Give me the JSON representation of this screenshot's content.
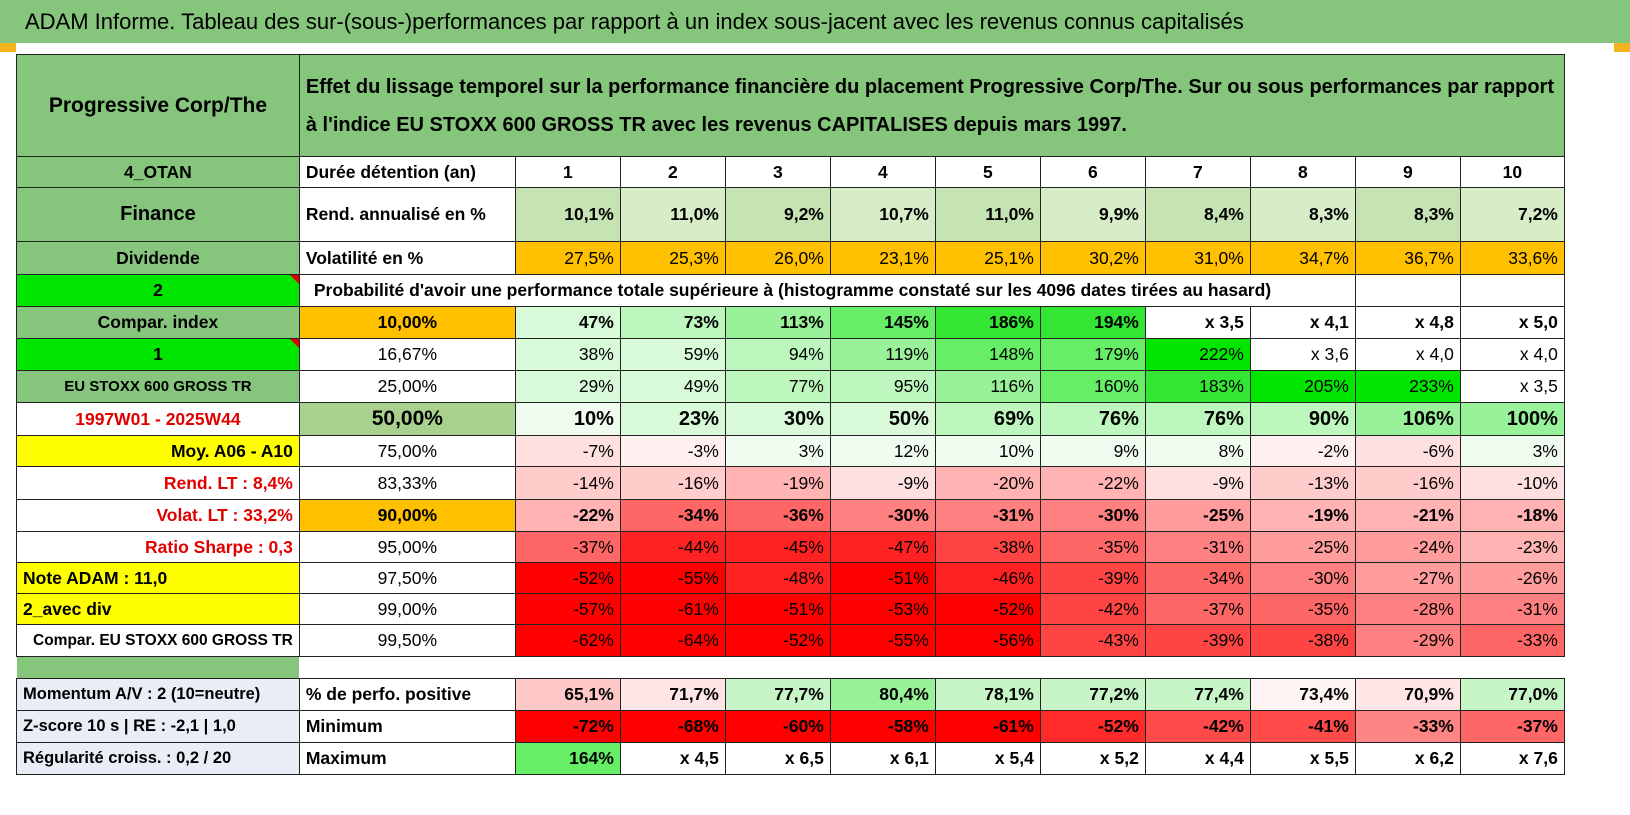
{
  "title": "ADAM Informe. Tableau des sur-(sous-)performances par rapport à un index sous-jacent avec les revenus connus capitalisés",
  "header": {
    "asset": "Progressive Corp/The",
    "description_line1": "Effet du lissage temporel sur la performance financière du placement Progressive Corp/The. Sur ou sous performances par rapport",
    "description_line2": "à l'indice EU STOXX 600 GROSS TR avec les revenus CAPITALISES depuis mars 1997."
  },
  "left_panel": {
    "code": "4_OTAN",
    "sector": "Finance",
    "type": "Dividende",
    "value_2": "2",
    "compar_index": "Compar. index",
    "value_1": "1",
    "index_name": "EU STOXX 600 GROSS TR",
    "period": "1997W01 - 2025W44",
    "moy": "Moy. A06 - A10",
    "rend_lt": "Rend. LT :    8,4%",
    "volat_lt": "Volat. LT :    33,2%",
    "sharpe": "Ratio Sharpe :     0,3",
    "note": "Note ADAM : 11,0",
    "avec_div": "2_avec div",
    "compar_full": "Compar. EU STOXX 600 GROSS TR"
  },
  "stats": {
    "duration_label": "Durée détention (an)",
    "years": [
      "1",
      "2",
      "3",
      "4",
      "5",
      "6",
      "7",
      "8",
      "9",
      "10"
    ],
    "rend_label": "Rend. annualisé en %",
    "rend": [
      "10,1%",
      "11,0%",
      "9,2%",
      "10,7%",
      "11,0%",
      "9,9%",
      "8,4%",
      "8,3%",
      "8,3%",
      "7,2%"
    ],
    "vol_label": "Volatilité en %",
    "vol": [
      "27,5%",
      "25,3%",
      "26,0%",
      "23,1%",
      "25,1%",
      "30,2%",
      "31,0%",
      "34,7%",
      "36,7%",
      "33,6%"
    ],
    "prob_label": "Probabilité d'avoir une performance totale supérieure à (histogramme constaté sur les 4096 dates tirées au hasard)"
  },
  "percentile_rows": [
    {
      "pct": "10,00%",
      "vals": [
        "47%",
        "73%",
        "113%",
        "145%",
        "186%",
        "194%",
        "x 3,5",
        "x 4,1",
        "x 4,8",
        "x 5,0"
      ]
    },
    {
      "pct": "16,67%",
      "vals": [
        "38%",
        "59%",
        "94%",
        "119%",
        "148%",
        "179%",
        "222%",
        "x 3,6",
        "x 4,0",
        "x 4,0"
      ]
    },
    {
      "pct": "25,00%",
      "vals": [
        "29%",
        "49%",
        "77%",
        "95%",
        "116%",
        "160%",
        "183%",
        "205%",
        "233%",
        "x 3,5"
      ]
    },
    {
      "pct": "50,00%",
      "vals": [
        "10%",
        "23%",
        "30%",
        "50%",
        "69%",
        "76%",
        "76%",
        "90%",
        "106%",
        "100%"
      ]
    },
    {
      "pct": "75,00%",
      "vals": [
        "-7%",
        "-3%",
        "3%",
        "12%",
        "10%",
        "9%",
        "8%",
        "-2%",
        "-6%",
        "3%"
      ]
    },
    {
      "pct": "83,33%",
      "vals": [
        "-14%",
        "-16%",
        "-19%",
        "-9%",
        "-20%",
        "-22%",
        "-9%",
        "-13%",
        "-16%",
        "-10%"
      ]
    },
    {
      "pct": "90,00%",
      "vals": [
        "-22%",
        "-34%",
        "-36%",
        "-30%",
        "-31%",
        "-30%",
        "-25%",
        "-19%",
        "-21%",
        "-18%"
      ]
    },
    {
      "pct": "95,00%",
      "vals": [
        "-37%",
        "-44%",
        "-45%",
        "-47%",
        "-38%",
        "-35%",
        "-31%",
        "-25%",
        "-24%",
        "-23%"
      ]
    },
    {
      "pct": "97,50%",
      "vals": [
        "-52%",
        "-55%",
        "-48%",
        "-51%",
        "-46%",
        "-39%",
        "-34%",
        "-30%",
        "-27%",
        "-26%"
      ]
    },
    {
      "pct": "99,00%",
      "vals": [
        "-57%",
        "-61%",
        "-51%",
        "-53%",
        "-52%",
        "-42%",
        "-37%",
        "-35%",
        "-28%",
        "-31%"
      ]
    },
    {
      "pct": "99,50%",
      "vals": [
        "-62%",
        "-64%",
        "-52%",
        "-55%",
        "-56%",
        "-43%",
        "-39%",
        "-38%",
        "-29%",
        "-33%"
      ]
    }
  ],
  "bottom": {
    "momentum": "Momentum A/V : 2 (10=neutre)",
    "zscore": "Z-score 10 s | RE : -2,1 | 1,0",
    "regularite": "Régularité croiss. : 0,2 / 20",
    "pos_label": "% de perfo. positive",
    "pos": [
      "65,1%",
      "71,7%",
      "77,7%",
      "80,4%",
      "78,1%",
      "77,2%",
      "77,4%",
      "73,4%",
      "70,9%",
      "77,0%"
    ],
    "min_label": "Minimum",
    "min": [
      "-72%",
      "-68%",
      "-60%",
      "-58%",
      "-61%",
      "-52%",
      "-42%",
      "-41%",
      "-33%",
      "-37%"
    ],
    "max_label": "Maximum",
    "max": [
      "164%",
      "x 4,5",
      "x 6,5",
      "x 6,1",
      "x 5,4",
      "x 5,2",
      "x 4,4",
      "x 5,5",
      "x 6,2",
      "x 7,6"
    ]
  },
  "colors": {
    "banner": "#86c67c",
    "positive_high": "#00e600",
    "negative_high": "#ff0000",
    "volatility": "#ffc000",
    "highlight": "#ffff00"
  }
}
